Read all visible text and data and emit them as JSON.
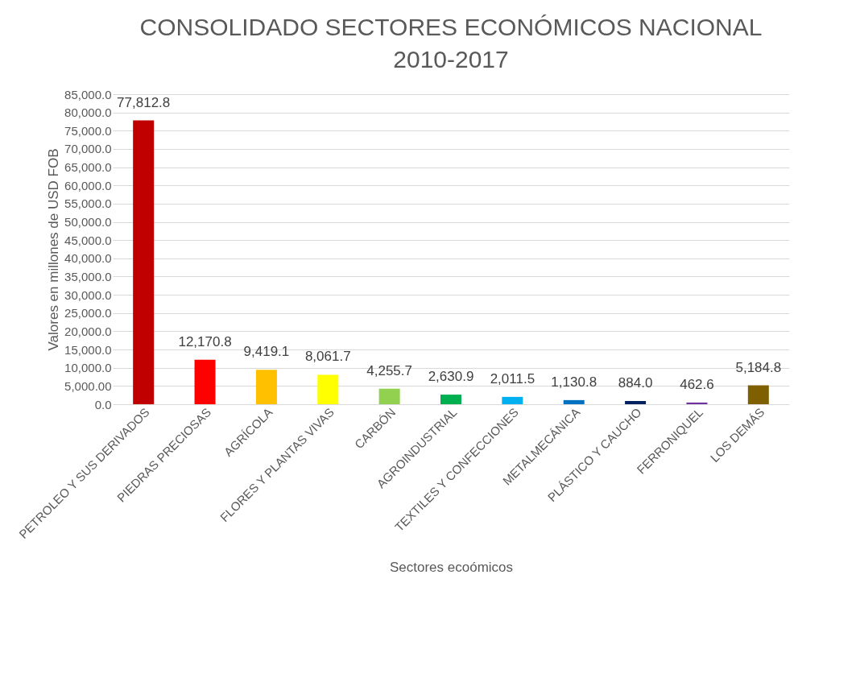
{
  "chart_data": {
    "type": "bar",
    "title": "CONSOLIDADO SECTORES ECONÓMICOS NACIONAL 2010-2017",
    "xlabel": "Sectores ecoómicos",
    "ylabel": "Valores en millones de USD FOB",
    "categories": [
      "PETROLEO Y SUS DERIVADOS",
      "PIEDRAS PRECIOSAS",
      "AGRÍCOLA",
      "FLORES Y PLANTAS VIVAS",
      "CARBÓN",
      "AGROINDUSTRIAL",
      "TEXTILES Y CONFECCIONES",
      "METALMECÁNICA",
      "PLÁSTICO Y CAUCHO",
      "FERRONIQUEL",
      "LOS DEMÁS"
    ],
    "values": [
      77812.8,
      12170.8,
      9419.1,
      8061.7,
      4255.7,
      2630.9,
      2011.5,
      1130.8,
      884.0,
      462.6,
      5184.8
    ],
    "colors": [
      "#c00000",
      "#ff0000",
      "#ffc000",
      "#ffff00",
      "#92d050",
      "#00b050",
      "#00b0f0",
      "#0070c0",
      "#002060",
      "#7030a0",
      "#7f6000"
    ],
    "ylim": [
      0,
      85000
    ],
    "yticks": [
      {
        "value": 0,
        "label": "0.0"
      },
      {
        "value": 5000,
        "label": "5,000.00"
      },
      {
        "value": 10000,
        "label": "10,000.0"
      },
      {
        "value": 15000,
        "label": "15,000.0"
      },
      {
        "value": 20000,
        "label": "20,000.0"
      },
      {
        "value": 25000,
        "label": "25,000.0"
      },
      {
        "value": 30000,
        "label": "30,000.0"
      },
      {
        "value": 35000,
        "label": "35,000.0"
      },
      {
        "value": 40000,
        "label": "40,000.0"
      },
      {
        "value": 45000,
        "label": "45,000.0"
      },
      {
        "value": 50000,
        "label": "50,000.0"
      },
      {
        "value": 55000,
        "label": "55,000.0"
      },
      {
        "value": 60000,
        "label": "60,000.0"
      },
      {
        "value": 65000,
        "label": "65,000.0"
      },
      {
        "value": 70000,
        "label": "70,000.0"
      },
      {
        "value": 75000,
        "label": "75,000.0"
      },
      {
        "value": 80000,
        "label": "80,000.0"
      },
      {
        "value": 85000,
        "label": "85,000.0"
      }
    ],
    "value_labels": [
      "77,812.8",
      "12,170.8",
      "9,419.1",
      "8,061.7",
      "4,255.7",
      "2,630.9",
      "2,011.5",
      "1,130.8",
      "884.0",
      "462.6",
      "5,184.8"
    ],
    "data_labels": true,
    "grid": "y"
  }
}
